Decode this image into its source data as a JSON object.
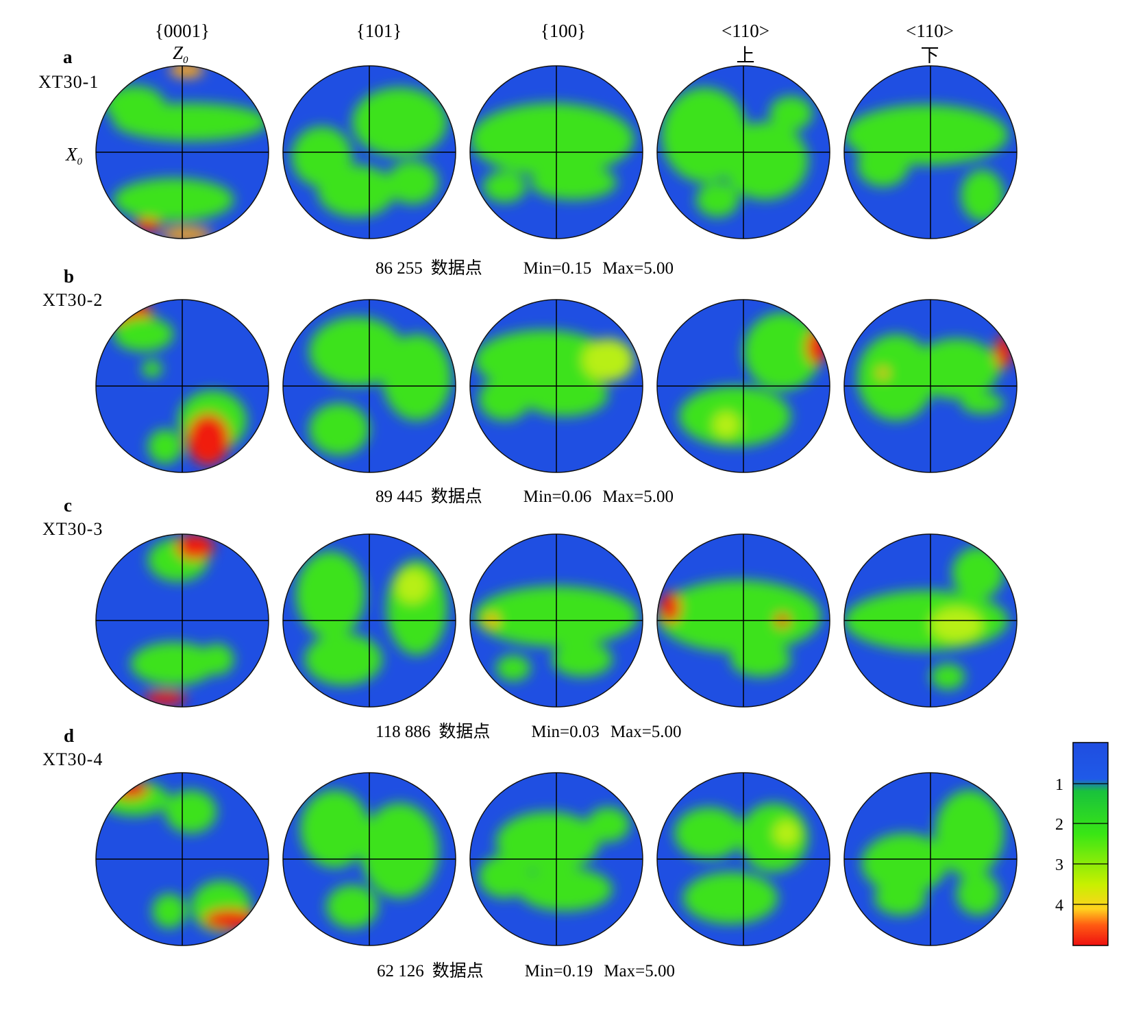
{
  "columns": [
    {
      "plane": "{0001}",
      "sub": ""
    },
    {
      "plane": "{101}",
      "sub": ""
    },
    {
      "plane": "{100}",
      "sub": ""
    },
    {
      "plane": "<110>",
      "sub": "上"
    },
    {
      "plane": "<110>",
      "sub": "下"
    }
  ],
  "axes": {
    "z_label": "Z",
    "x_label": "X",
    "subscript": "0"
  },
  "rows": [
    {
      "letter": "a",
      "sample": "XT30-1",
      "points": "86 255",
      "points_unit": "数据点",
      "min": "Min=0.15",
      "max": "Max=5.00"
    },
    {
      "letter": "b",
      "sample": "XT30-2",
      "points": "89 445",
      "points_unit": "数据点",
      "min": "Min=0.06",
      "max": "Max=5.00"
    },
    {
      "letter": "c",
      "sample": "XT30-3",
      "points": "118 886",
      "points_unit": "数据点",
      "min": "Min=0.03",
      "max": "Max=5.00"
    },
    {
      "letter": "d",
      "sample": "XT30-4",
      "points": "62 126",
      "points_unit": "数据点",
      "min": "Min=0.19",
      "max": "Max=5.00"
    }
  ],
  "colorbar": {
    "ticks": [
      "1",
      "2",
      "3",
      "4"
    ],
    "stops": [
      {
        "value": 0,
        "color": "#1f4de0"
      },
      {
        "value": 0.9,
        "color": "#1f5ae8"
      },
      {
        "value": 1.1,
        "color": "#19c23c"
      },
      {
        "value": 2,
        "color": "#39e615"
      },
      {
        "value": 3,
        "color": "#c8f000"
      },
      {
        "value": 3.5,
        "color": "#ffd21e"
      },
      {
        "value": 4,
        "color": "#ff5a12"
      },
      {
        "value": 5,
        "color": "#ee1010"
      }
    ]
  },
  "colors": {
    "blue": "#1f4fe2",
    "green": "#3ee21a",
    "yellowgreen": "#b8ef14",
    "red": "#f01e0e",
    "orange": "#ffa818"
  }
}
